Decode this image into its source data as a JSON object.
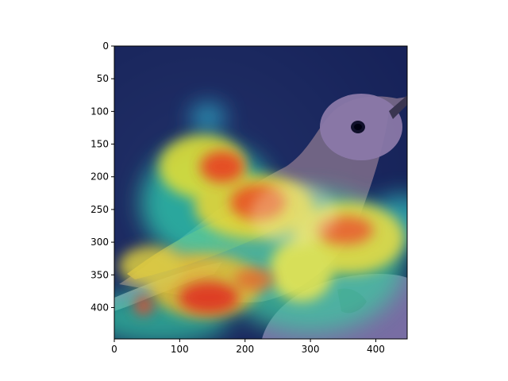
{
  "chart_data": {
    "type": "heatmap",
    "title": "",
    "xlabel": "",
    "ylabel": "",
    "image_size": [
      448,
      448
    ],
    "xlim": [
      0,
      448
    ],
    "ylim": [
      448,
      0
    ],
    "x_ticks": [
      0,
      100,
      200,
      300,
      400
    ],
    "y_ticks": [
      0,
      50,
      100,
      150,
      200,
      250,
      300,
      350,
      400
    ],
    "colormap": "jet",
    "overlay_opacity": 0.5,
    "background_description": "photo of a small brown bird held in a hand",
    "heat_regions": [
      {
        "x": 170,
        "y": 190,
        "rx": 45,
        "ry": 40,
        "intensity": 0.95
      },
      {
        "x": 220,
        "y": 245,
        "rx": 45,
        "ry": 32,
        "intensity": 0.95
      },
      {
        "x": 360,
        "y": 280,
        "rx": 45,
        "ry": 28,
        "intensity": 0.85
      },
      {
        "x": 140,
        "y": 370,
        "rx": 55,
        "ry": 28,
        "intensity": 0.95
      },
      {
        "x": 160,
        "y": 165,
        "rx": 80,
        "ry": 70,
        "intensity": 0.55
      },
      {
        "x": 290,
        "y": 320,
        "rx": 90,
        "ry": 80,
        "intensity": 0.5
      },
      {
        "x": 80,
        "y": 340,
        "rx": 70,
        "ry": 50,
        "intensity": 0.5
      },
      {
        "x": 140,
        "y": 110,
        "rx": 22,
        "ry": 18,
        "intensity": 0.45
      },
      {
        "x": 40,
        "y": 395,
        "rx": 40,
        "ry": 25,
        "intensity": 0.55
      },
      {
        "x": 420,
        "y": 265,
        "rx": 35,
        "ry": 30,
        "intensity": 0.5
      }
    ]
  }
}
